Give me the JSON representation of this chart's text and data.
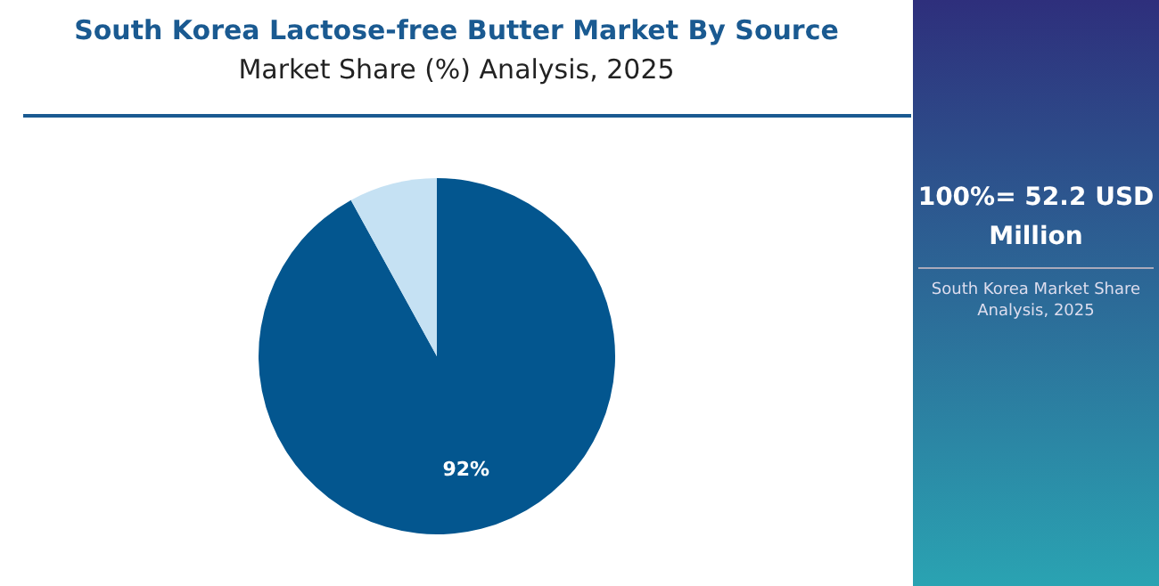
{
  "chart_data": {
    "type": "pie",
    "title": "South Korea Lactose-free Butter Market By Source",
    "subtitle": "Market Share (%) Analysis, 2025",
    "categories": [
      null,
      null
    ],
    "values": [
      92,
      8
    ],
    "colors": [
      "#03568f",
      "#c5e1f3"
    ],
    "value_labels": [
      "92%",
      null
    ],
    "legend": false,
    "annotations": [
      "100%= 52.2 USD Million",
      "South Korea Market Share Analysis, 2025"
    ]
  }
}
